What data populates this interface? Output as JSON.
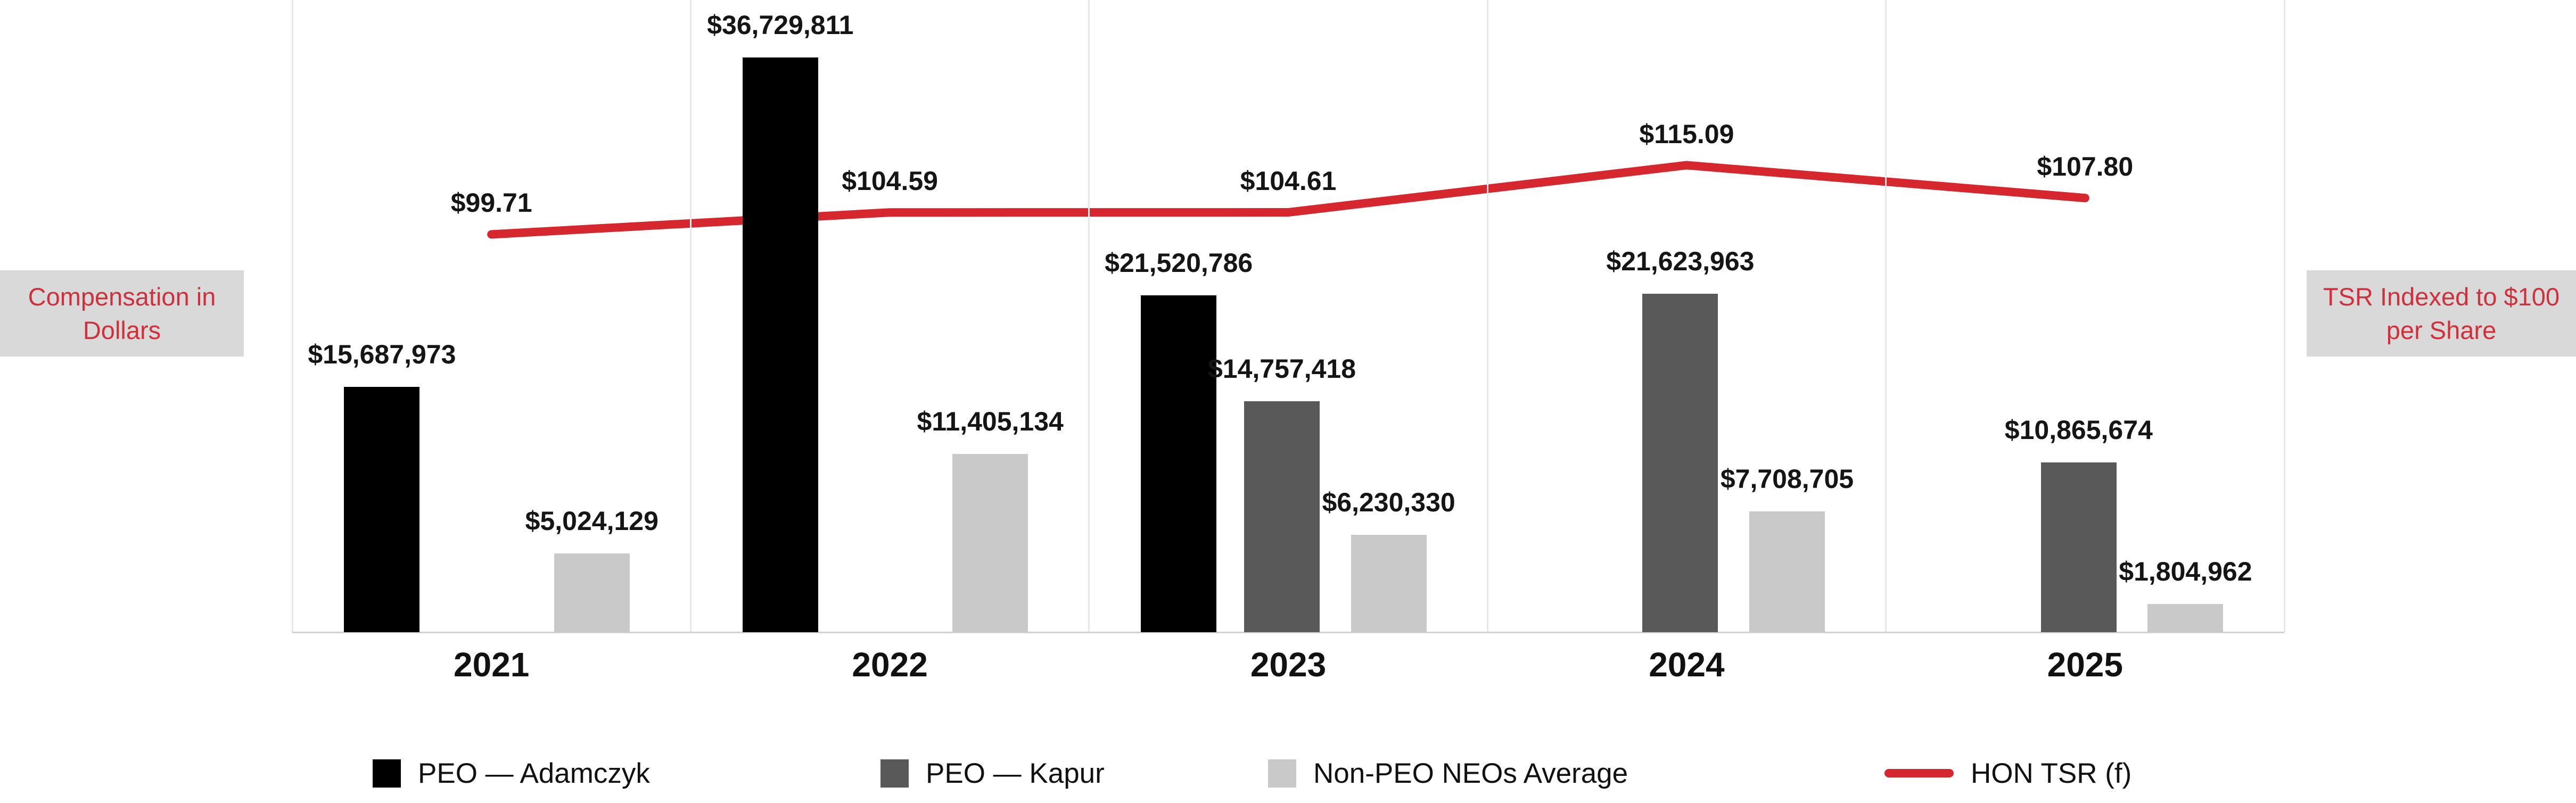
{
  "chart_data": {
    "type": "bar",
    "subtype": "grouped-bars-with-line-overlay",
    "title": "",
    "categories": [
      "2021",
      "2022",
      "2023",
      "2024",
      "2025"
    ],
    "series": [
      {
        "name": "PEO — Adamczyk",
        "color": "#000000",
        "values": [
          15687973,
          36729811,
          21520786,
          null,
          null
        ],
        "labels": [
          "$15,687,973",
          "$36,729,811",
          "$21,520,786",
          null,
          null
        ]
      },
      {
        "name": "PEO — Kapur",
        "color": "#595959",
        "values": [
          null,
          null,
          14757418,
          21623963,
          10865674
        ],
        "labels": [
          null,
          null,
          "$14,757,418",
          "$21,623,963",
          "$10,865,674"
        ]
      },
      {
        "name": "Non-PEO NEOs Average",
        "color": "#c9c9c9",
        "values": [
          5024129,
          11405134,
          6230330,
          7708705,
          1804962
        ],
        "labels": [
          "$5,024,129",
          "$11,405,134",
          "$6,230,330",
          "$7,708,705",
          "$1,804,962"
        ]
      }
    ],
    "line": {
      "name": "HON TSR (f)",
      "color": "#d7272e",
      "values": [
        99.71,
        104.59,
        104.61,
        115.09,
        107.8
      ],
      "labels": [
        "$99.71",
        "$104.59",
        "$104.61",
        "$115.09",
        "$107.80"
      ]
    },
    "left_axis_label": "Compensation in Dollars",
    "right_axis_label": "TSR Indexed to $100 per Share",
    "ylim": [
      0,
      40000000
    ],
    "right_axis_base": 100,
    "grid": "vertical-panel-separators",
    "legend_position": "bottom"
  },
  "legend": {
    "items": [
      {
        "label": "PEO — Adamczyk",
        "swatch": "square",
        "color": "#000000"
      },
      {
        "label": "PEO — Kapur",
        "swatch": "square",
        "color": "#595959"
      },
      {
        "label": "Non-PEO NEOs Average",
        "swatch": "square",
        "color": "#c9c9c9"
      },
      {
        "label": "HON TSR (f)",
        "swatch": "line",
        "color": "#d7272e"
      }
    ]
  },
  "colors": {
    "accent_red": "#d7272e",
    "axis_label_bg": "#d9d9d9",
    "gridline": "#e8e8e8"
  }
}
